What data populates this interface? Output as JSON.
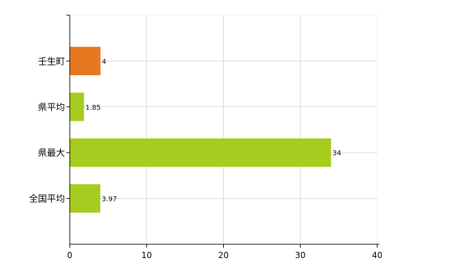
{
  "chart_data": {
    "type": "bar",
    "orientation": "horizontal",
    "categories": [
      "壬生町",
      "県平均",
      "県最大",
      "全国平均"
    ],
    "values": [
      4,
      1.85,
      34,
      3.97
    ],
    "data_labels": [
      "4",
      "1.85",
      "34",
      "3.97"
    ],
    "bar_colors": [
      "#e87722",
      "#a5cc1e",
      "#a5cc1e",
      "#a5cc1e"
    ],
    "xlim": [
      0,
      40
    ],
    "x_ticks": [
      0,
      10,
      20,
      30,
      40
    ],
    "x_tick_labels": [
      "0",
      "10",
      "20",
      "30",
      "40"
    ],
    "grid": true,
    "legend": "none"
  }
}
